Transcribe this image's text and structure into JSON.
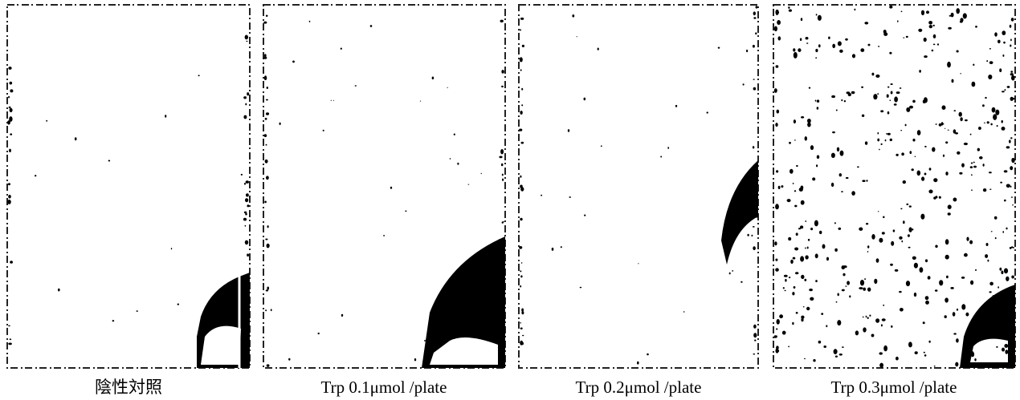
{
  "panels": [
    {
      "caption": "陰性対照"
    },
    {
      "caption": "Trp 0.1μmol /plate"
    },
    {
      "caption": "Trp 0.2μmol /plate"
    },
    {
      "caption": "Trp 0.3μmol /plate"
    }
  ]
}
